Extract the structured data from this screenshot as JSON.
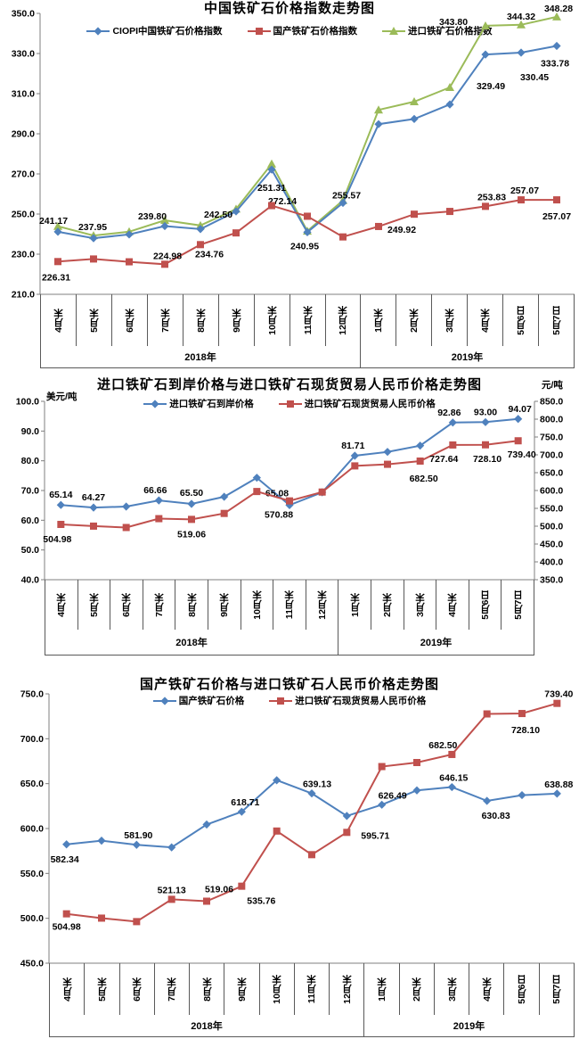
{
  "charts": [
    {
      "title": "中国铁矿石价格指数走势图",
      "categories": [
        "4月末",
        "5月末",
        "6月末",
        "7月末",
        "8月末",
        "9月末",
        "10月末",
        "11月末",
        "12月末",
        "1月末",
        "2月末",
        "3月末",
        "4月末",
        "5月6日",
        "5月7日"
      ],
      "year_groups": [
        {
          "label": "2018年",
          "cols": 9
        },
        {
          "label": "2019年",
          "cols": 6
        }
      ],
      "left_axis": {
        "min": 210,
        "max": 350,
        "step": 20,
        "unit": ""
      },
      "chart_data": {
        "type": "line",
        "note": "3 series, 15 points, values shown as data labels where present"
      },
      "series": [
        {
          "name": "CIOPI中国铁矿石价格指数",
          "color": "#4F81BD",
          "marker": "diamond",
          "axis": "left",
          "values": [
            241.17,
            237.95,
            239.8,
            244.0,
            242.5,
            251.31,
            272.14,
            240.95,
            255.57,
            294.8,
            297.4,
            304.6,
            329.49,
            330.45,
            333.78
          ],
          "labels": [
            {
              "i": 0,
              "t": "241.17",
              "dx": -5,
              "dy": -12
            },
            {
              "i": 1,
              "t": "237.95",
              "dx": -1,
              "dy": -12
            },
            {
              "i": 2,
              "t": "239.80",
              "dx": 26,
              "dy": -20
            },
            {
              "i": 4,
              "t": "242.50",
              "dx": 20,
              "dy": -16
            },
            {
              "i": 5,
              "t": "251.31",
              "dx": 40,
              "dy": -26
            },
            {
              "i": 6,
              "t": "272.14",
              "dx": 12,
              "dy": 36
            },
            {
              "i": 7,
              "t": "240.95",
              "dx": -3,
              "dy": 16
            },
            {
              "i": 8,
              "t": "255.57",
              "dx": 4,
              "dy": -8
            },
            {
              "i": 12,
              "t": "329.49",
              "dx": 6,
              "dy": 36
            },
            {
              "i": 13,
              "t": "330.45",
              "dx": 15,
              "dy": 28
            },
            {
              "i": 14,
              "t": "333.78",
              "dx": -2,
              "dy": 20
            }
          ]
        },
        {
          "name": "国产铁矿石价格指数",
          "color": "#C0504D",
          "marker": "square",
          "axis": "left",
          "values": [
            226.31,
            227.6,
            226.2,
            224.98,
            234.76,
            240.6,
            254.2,
            248.9,
            238.6,
            243.8,
            249.92,
            251.3,
            253.83,
            257.07,
            257.07
          ],
          "labels": [
            {
              "i": 0,
              "t": "226.31",
              "dx": -2,
              "dy": 18
            },
            {
              "i": 3,
              "t": "224.98",
              "dx": 3,
              "dy": -9
            },
            {
              "i": 4,
              "t": "234.76",
              "dx": 10,
              "dy": 11
            },
            {
              "i": 10,
              "t": "249.92",
              "dx": -14,
              "dy": 18
            },
            {
              "i": 12,
              "t": "253.83",
              "dx": 7,
              "dy": -10
            },
            {
              "i": 13,
              "t": "257.07",
              "dx": 4,
              "dy": -10
            },
            {
              "i": 14,
              "t": "257.07",
              "dx": 0,
              "dy": 19
            }
          ]
        },
        {
          "name": "进口铁矿石价格指数",
          "color": "#9BBB59",
          "marker": "triangle",
          "axis": "left",
          "values": [
            243.9,
            239.3,
            241.2,
            246.9,
            244.3,
            252.5,
            275.0,
            241.5,
            256.8,
            301.9,
            306.0,
            313.1,
            343.8,
            344.32,
            348.28
          ],
          "labels": [
            {
              "i": 12,
              "t": "343.80",
              "dx": -36,
              "dy": -4
            },
            {
              "i": 13,
              "t": "344.32",
              "dx": 0,
              "dy": -9
            },
            {
              "i": 14,
              "t": "348.28",
              "dx": 2,
              "dy": -9
            }
          ]
        }
      ]
    },
    {
      "title": "进口铁矿石到岸价格与进口铁矿石现货贸易人民币价格走势图",
      "categories": [
        "4月末",
        "5月末",
        "6月末",
        "7月末",
        "8月末",
        "9月末",
        "10月末",
        "11月末",
        "12月末",
        "1月末",
        "2月末",
        "3月末",
        "4月末",
        "5月6日",
        "5月7日"
      ],
      "year_groups": [
        {
          "label": "2018年",
          "cols": 9
        },
        {
          "label": "2019年",
          "cols": 6
        }
      ],
      "left_axis": {
        "min": 40,
        "max": 100,
        "step": 10,
        "unit": "美元/吨"
      },
      "right_axis": {
        "min": 350,
        "max": 850,
        "step": 50,
        "unit": "元/吨"
      },
      "chart_data": {
        "type": "line",
        "note": "dual axis: USD/t left, CNY/t right"
      },
      "series": [
        {
          "name": "进口铁矿石到岸价格",
          "color": "#4F81BD",
          "marker": "diamond",
          "axis": "left",
          "values": [
            65.14,
            64.27,
            64.6,
            66.66,
            65.5,
            67.9,
            74.3,
            65.08,
            69.4,
            81.71,
            83.0,
            85.1,
            92.86,
            93.0,
            94.07
          ],
          "labels": [
            {
              "i": 0,
              "t": "65.14",
              "dx": 0,
              "dy": -11
            },
            {
              "i": 1,
              "t": "64.27",
              "dx": 0,
              "dy": -11
            },
            {
              "i": 3,
              "t": "66.66",
              "dx": -4,
              "dy": -11
            },
            {
              "i": 4,
              "t": "65.50",
              "dx": 0,
              "dy": -12
            },
            {
              "i": 7,
              "t": "65.08",
              "dx": -14,
              "dy": -13
            },
            {
              "i": 9,
              "t": "81.71",
              "dx": -2,
              "dy": -11
            },
            {
              "i": 12,
              "t": "92.86",
              "dx": -4,
              "dy": -11
            },
            {
              "i": 13,
              "t": "93.00",
              "dx": 0,
              "dy": -11
            },
            {
              "i": 14,
              "t": "94.07",
              "dx": 2,
              "dy": -11
            }
          ]
        },
        {
          "name": "进口铁矿石现货贸易人民币价格",
          "color": "#C0504D",
          "marker": "square",
          "axis": "right",
          "values": [
            504.98,
            500.2,
            496.3,
            521.13,
            519.06,
            535.76,
            597.2,
            570.88,
            595.71,
            669.0,
            673.5,
            682.5,
            727.64,
            728.1,
            739.4
          ],
          "labels": [
            {
              "i": 0,
              "t": "504.98",
              "dx": -4,
              "dy": 17
            },
            {
              "i": 4,
              "t": "519.06",
              "dx": 0,
              "dy": 17
            },
            {
              "i": 7,
              "t": "570.88",
              "dx": -12,
              "dy": 16
            },
            {
              "i": 11,
              "t": "682.50",
              "dx": 4,
              "dy": 20
            },
            {
              "i": 12,
              "t": "727.64",
              "dx": -10,
              "dy": 16
            },
            {
              "i": 13,
              "t": "728.10",
              "dx": 2,
              "dy": 16
            },
            {
              "i": 14,
              "t": "739.40",
              "dx": 4,
              "dy": 16
            }
          ]
        }
      ]
    },
    {
      "title": "国产铁矿石价格与进口铁矿石人民币价格走势图",
      "categories": [
        "4月末",
        "5月末",
        "6月末",
        "7月末",
        "8月末",
        "9月末",
        "10月末",
        "11月末",
        "12月末",
        "1月末",
        "2月末",
        "3月末",
        "4月末",
        "5月6日",
        "5月7日"
      ],
      "year_groups": [
        {
          "label": "2018年",
          "cols": 9
        },
        {
          "label": "2019年",
          "cols": 6
        }
      ],
      "left_axis": {
        "min": 450,
        "max": 750,
        "step": 50,
        "unit": ""
      },
      "chart_data": {
        "type": "line",
        "note": "CNY/t"
      },
      "series": [
        {
          "name": "国产铁矿石价格",
          "color": "#4F81BD",
          "marker": "diamond",
          "axis": "left",
          "values": [
            582.34,
            586.5,
            581.9,
            579.0,
            604.5,
            618.71,
            653.8,
            639.13,
            614.0,
            626.49,
            642.5,
            646.15,
            630.83,
            637.2,
            638.88
          ],
          "labels": [
            {
              "i": 0,
              "t": "582.34",
              "dx": -2,
              "dy": 17
            },
            {
              "i": 2,
              "t": "581.90",
              "dx": 2,
              "dy": -10
            },
            {
              "i": 5,
              "t": "618.71",
              "dx": 4,
              "dy": -10
            },
            {
              "i": 7,
              "t": "639.13",
              "dx": 6,
              "dy": -10
            },
            {
              "i": 9,
              "t": "626.49",
              "dx": 12,
              "dy": -10
            },
            {
              "i": 11,
              "t": "646.15",
              "dx": 2,
              "dy": -10
            },
            {
              "i": 12,
              "t": "630.83",
              "dx": 10,
              "dy": 17
            },
            {
              "i": 14,
              "t": "638.88",
              "dx": 2,
              "dy": -10
            }
          ]
        },
        {
          "name": "进口铁矿石现货贸易人民币价格",
          "color": "#C0504D",
          "marker": "square",
          "axis": "left",
          "values": [
            504.98,
            500.2,
            496.3,
            521.13,
            519.06,
            535.76,
            597.2,
            570.88,
            595.71,
            669.0,
            673.5,
            682.5,
            727.64,
            728.1,
            739.4
          ],
          "labels": [
            {
              "i": 0,
              "t": "504.98",
              "dx": 0,
              "dy": 15
            },
            {
              "i": 3,
              "t": "521.13",
              "dx": 0,
              "dy": -10
            },
            {
              "i": 4,
              "t": "519.06",
              "dx": 14,
              "dy": -13
            },
            {
              "i": 5,
              "t": "535.76",
              "dx": 22,
              "dy": 17
            },
            {
              "i": 8,
              "t": "595.71",
              "dx": 32,
              "dy": 4
            },
            {
              "i": 11,
              "t": "682.50",
              "dx": -10,
              "dy": -10
            },
            {
              "i": 13,
              "t": "728.10",
              "dx": 4,
              "dy": 19
            },
            {
              "i": 14,
              "t": "739.40",
              "dx": 2,
              "dy": -10
            }
          ]
        }
      ]
    }
  ]
}
